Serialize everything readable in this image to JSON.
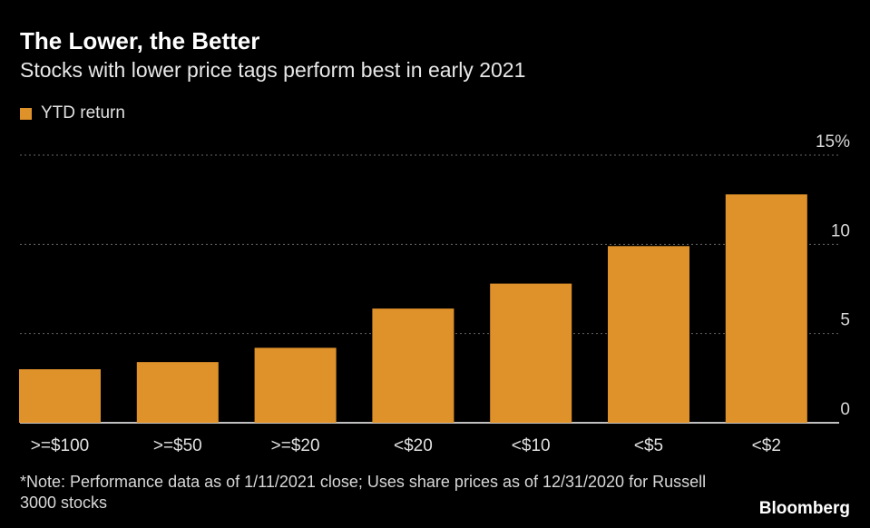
{
  "title": "The Lower, the Better",
  "subtitle": "Stocks with lower price tags perform best in early 2021",
  "note": "*Note: Performance data as of 1/11/2021 close; Uses share prices as of 12/31/2020 for Russell 3000 stocks",
  "brand": "Bloomberg",
  "colors": {
    "bar": "#e0922a",
    "background": "#000000",
    "grid": "#666666"
  },
  "chart_data": {
    "type": "bar",
    "categories": [
      ">=$100",
      ">=$50",
      ">=$20",
      "<$20",
      "<$10",
      "<$5",
      "<$2"
    ],
    "series": [
      {
        "name": "YTD return",
        "values": [
          3.0,
          3.4,
          4.2,
          6.4,
          7.8,
          9.9,
          12.8
        ]
      }
    ],
    "y_ticks": [
      0,
      5,
      10,
      15
    ],
    "y_tick_labels": [
      "0",
      "5",
      "10",
      "15%"
    ],
    "ylim": [
      0,
      15
    ],
    "grid": "horizontal dotted",
    "legend_position": "top-left",
    "axis_labels_side": "right"
  }
}
